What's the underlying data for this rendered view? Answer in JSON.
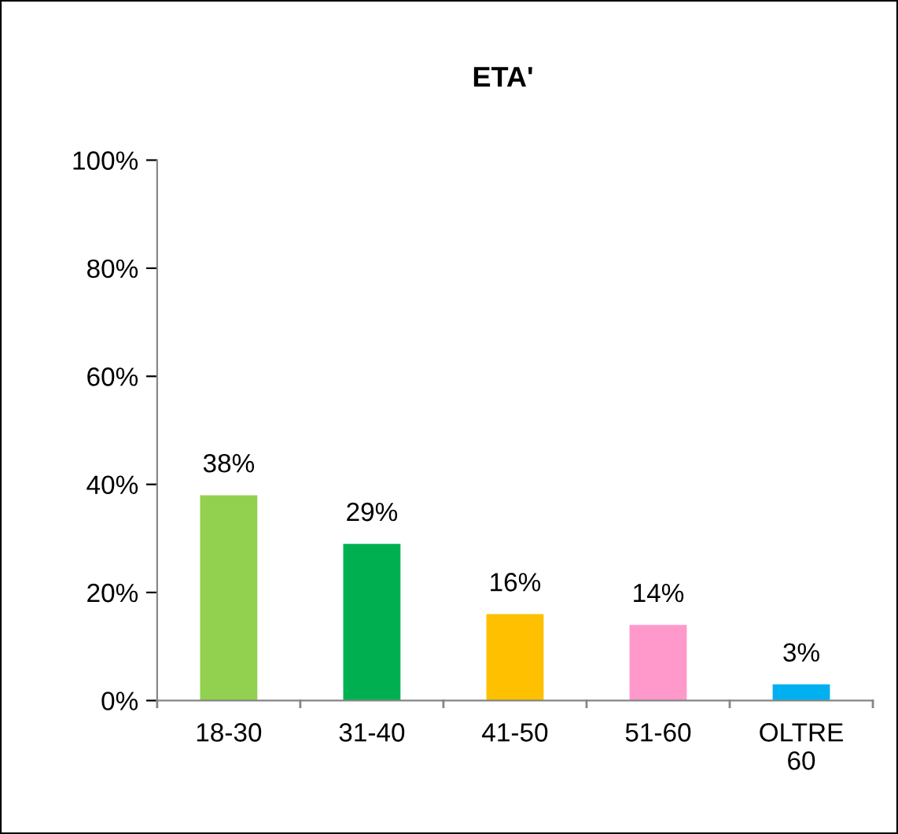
{
  "chart_data": {
    "type": "bar",
    "title": "ETA'",
    "categories": [
      "18-30",
      "31-40",
      "41-50",
      "51-60",
      "OLTRE 60"
    ],
    "values": [
      38,
      29,
      16,
      14,
      3
    ],
    "colors": [
      "#92d050",
      "#00b050",
      "#ffc000",
      "#ff99cc",
      "#00b0f0"
    ],
    "value_labels": [
      "38%",
      "29%",
      "16%",
      "14%",
      "3%"
    ],
    "ylim": [
      0,
      100
    ],
    "yticks": [
      {
        "value": 0,
        "label": "0%"
      },
      {
        "value": 20,
        "label": "20%"
      },
      {
        "value": 40,
        "label": "40%"
      },
      {
        "value": 60,
        "label": "60%"
      },
      {
        "value": 80,
        "label": "80%"
      },
      {
        "value": 100,
        "label": "100%"
      }
    ],
    "grid": false,
    "legend": false
  }
}
